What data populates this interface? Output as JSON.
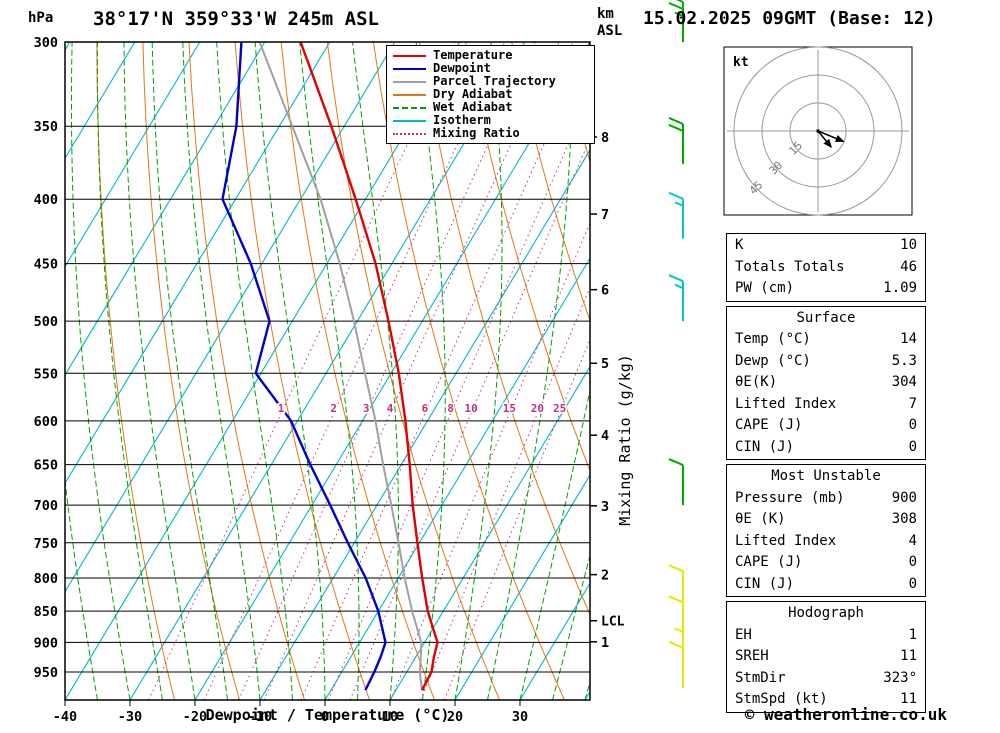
{
  "header": {
    "hpa_label": "hPa",
    "title": "38°17'N 359°33'W 245m ASL",
    "datetime": "15.02.2025 09GMT (Base: 12)"
  },
  "legend": {
    "items": [
      {
        "label": "Temperature",
        "color": "#e00000",
        "style": "solid"
      },
      {
        "label": "Dewpoint",
        "color": "#0000c8",
        "style": "solid"
      },
      {
        "label": "Parcel Trajectory",
        "color": "#a0a0a0",
        "style": "solid"
      },
      {
        "label": "Dry Adiabat",
        "color": "#e07818",
        "style": "solid"
      },
      {
        "label": "Wet Adiabat",
        "color": "#00a000",
        "style": "dashed"
      },
      {
        "label": "Isotherm",
        "color": "#00b8c8",
        "style": "solid"
      },
      {
        "label": "Mixing Ratio",
        "color": "#c03080",
        "style": "dotted"
      }
    ]
  },
  "axes": {
    "pressure_ticks": [
      300,
      350,
      400,
      450,
      500,
      550,
      600,
      650,
      700,
      750,
      800,
      850,
      900,
      950
    ],
    "temp_ticks": [
      -40,
      -30,
      -20,
      -10,
      0,
      10,
      20,
      30
    ],
    "xlabel": "Dewpoint / Temperature (°C)",
    "km_axis": {
      "label_top": "km",
      "label_bottom": "ASL",
      "ticks": [
        {
          "km": 1,
          "p": 899
        },
        {
          "km": 2,
          "p": 795
        },
        {
          "km": 3,
          "p": 701
        },
        {
          "km": 4,
          "p": 616
        },
        {
          "km": 5,
          "p": 540
        },
        {
          "km": 6,
          "p": 472
        },
        {
          "km": 7,
          "p": 411
        },
        {
          "km": 8,
          "p": 357
        }
      ],
      "lcl": {
        "label": "LCL",
        "p": 865
      }
    },
    "mixing_ratio": {
      "label": "Mixing Ratio (g/kg)",
      "values": [
        1,
        2,
        3,
        4,
        6,
        8,
        10,
        15,
        20,
        25
      ]
    }
  },
  "chart_data": {
    "type": "line",
    "subtype": "skew-t-log-p-sounding",
    "pressure_range_hPa": [
      300,
      1000
    ],
    "temp_axis_range_c": [
      -40,
      40
    ],
    "pressure_hPa": [
      982,
      950,
      925,
      900,
      850,
      800,
      750,
      700,
      650,
      600,
      550,
      500,
      450,
      400,
      350,
      300
    ],
    "series": [
      {
        "name": "Temperature",
        "color": "#e00000",
        "width": 2.4,
        "values": [
          14,
          13.8,
          12.8,
          12,
          7.6,
          3.7,
          -0.3,
          -4.5,
          -8.7,
          -13.4,
          -18.8,
          -25.2,
          -32.5,
          -41.5,
          -52,
          -64.5
        ]
      },
      {
        "name": "Dewpoint",
        "color": "#0000c8",
        "width": 2.4,
        "values": [
          5.3,
          5,
          4.6,
          4,
          0,
          -5,
          -11,
          -17.2,
          -24,
          -31,
          -40.8,
          -43.5,
          -51.7,
          -62,
          -66.6,
          -73.6
        ]
      },
      {
        "name": "Parcel Trajectory",
        "color": "#a0a0a0",
        "width": 2,
        "values": [
          14,
          12,
          10.8,
          9.5,
          5.2,
          1,
          -3.2,
          -7.8,
          -12.8,
          -18,
          -24,
          -30.5,
          -38,
          -46.9,
          -58,
          -70.8
        ]
      }
    ]
  },
  "wind_barbs": [
    {
      "p": 300,
      "speed_kt": 25,
      "color": "#00a800"
    },
    {
      "p": 375,
      "speed_kt": 20,
      "color": "#00a800"
    },
    {
      "p": 430,
      "speed_kt": 15,
      "color": "#00c8c8"
    },
    {
      "p": 500,
      "speed_kt": 15,
      "color": "#00c8c8"
    },
    {
      "p": 700,
      "speed_kt": 10,
      "color": "#00a800"
    },
    {
      "p": 850,
      "speed_kt": 10,
      "color": "#e8e800"
    },
    {
      "p": 900,
      "speed_kt": 10,
      "color": "#e8e800"
    },
    {
      "p": 950,
      "speed_kt": 5,
      "color": "#e8e800"
    },
    {
      "p": 978,
      "speed_kt": 10,
      "color": "#e8e800"
    }
  ],
  "hodograph": {
    "kt_label": "kt",
    "ring_spacing_kt": 15,
    "ring_labels": [
      15,
      30,
      45
    ],
    "arrows": [
      {
        "dx_kt": 7,
        "dy_kt": 8.5
      },
      {
        "dx_kt": 13.5,
        "dy_kt": 5.5
      }
    ]
  },
  "tables": [
    {
      "title": null,
      "rows": [
        [
          "K",
          "10"
        ],
        [
          "Totals Totals",
          "46"
        ],
        [
          "PW (cm)",
          "1.09"
        ]
      ]
    },
    {
      "title": "Surface",
      "rows": [
        [
          "Temp (°C)",
          "14"
        ],
        [
          "Dewp (°C)",
          "5.3"
        ],
        [
          "θE(K)",
          "304"
        ],
        [
          "Lifted Index",
          "7"
        ],
        [
          "CAPE (J)",
          "0"
        ],
        [
          "CIN (J)",
          "0"
        ]
      ]
    },
    {
      "title": "Most Unstable",
      "rows": [
        [
          "Pressure (mb)",
          "900"
        ],
        [
          "θE (K)",
          "308"
        ],
        [
          "Lifted Index",
          "4"
        ],
        [
          "CAPE (J)",
          "0"
        ],
        [
          "CIN (J)",
          "0"
        ]
      ]
    },
    {
      "title": "Hodograph",
      "rows": [
        [
          "EH",
          "1"
        ],
        [
          "SREH",
          "11"
        ],
        [
          "StmDir",
          "323°"
        ],
        [
          "StmSpd (kt)",
          "11"
        ]
      ]
    }
  ],
  "footer": {
    "copyright": "© weatheronline.co.uk"
  },
  "colors": {
    "temperature": "#e00000",
    "dewpoint": "#0000c8",
    "parcel": "#a0a0a0",
    "dry_adiabat": "#e07818",
    "wet_adiabat": "#00a000",
    "isotherm": "#00b8c8",
    "mixing_ratio": "#c03080",
    "grid": "#000000"
  }
}
